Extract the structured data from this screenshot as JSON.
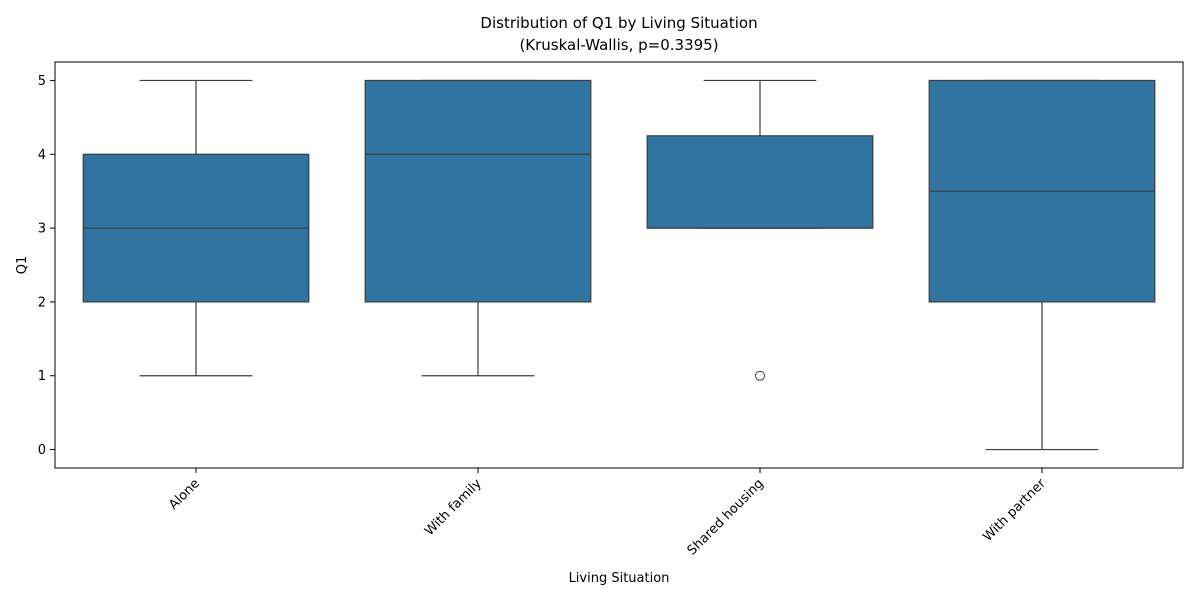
{
  "chart_data": {
    "type": "box",
    "title": "Distribution of Q1 by Living Situation",
    "subtitle": "(Kruskal-Wallis, p=0.3395)",
    "xlabel": "Living Situation",
    "ylabel": "Q1",
    "ylim": [
      -0.25,
      5.25
    ],
    "yticks": [
      0,
      1,
      2,
      3,
      4,
      5
    ],
    "grid": false,
    "box_color": "#3274a1",
    "line_color": "#3d3d3d",
    "categories": [
      "Alone",
      "With family",
      "Shared housing",
      "With partner"
    ],
    "boxes": [
      {
        "category": "Alone",
        "whisker_low": 1,
        "q1": 2,
        "median": 3,
        "q3": 4,
        "whisker_high": 5,
        "outliers": []
      },
      {
        "category": "With family",
        "whisker_low": 1,
        "q1": 2,
        "median": 4,
        "q3": 5,
        "whisker_high": 5,
        "outliers": []
      },
      {
        "category": "Shared housing",
        "whisker_low": 3,
        "q1": 3,
        "median": 3,
        "q3": 4.25,
        "whisker_high": 5,
        "outliers": [
          1
        ]
      },
      {
        "category": "With partner",
        "whisker_low": 0,
        "q1": 2,
        "median": 3.5,
        "q3": 5,
        "whisker_high": 5,
        "outliers": []
      }
    ]
  }
}
